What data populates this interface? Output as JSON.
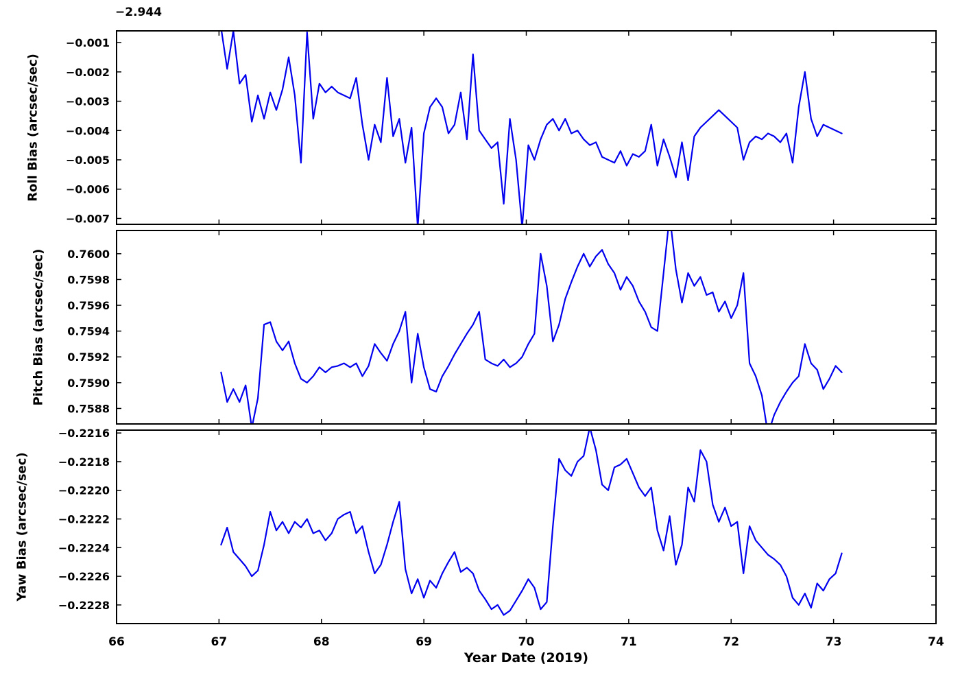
{
  "chart_data": {
    "type": "line",
    "title": "",
    "xlabel": "Year Date (2019)",
    "xlim": [
      66,
      74
    ],
    "xticks": [
      66,
      67,
      68,
      69,
      70,
      71,
      72,
      73,
      74
    ],
    "xtick_labels": [
      "66",
      "67",
      "68",
      "69",
      "70",
      "71",
      "72",
      "73",
      "74"
    ],
    "grid": false,
    "legend": null,
    "line_color": "#0000ee",
    "background": "#ffffff",
    "x": [
      67.02,
      67.08,
      67.14,
      67.2,
      67.26,
      67.32,
      67.38,
      67.44,
      67.5,
      67.56,
      67.62,
      67.68,
      67.74,
      67.8,
      67.86,
      67.92,
      67.98,
      68.04,
      68.1,
      68.16,
      68.22,
      68.28,
      68.34,
      68.4,
      68.46,
      68.52,
      68.58,
      68.64,
      68.7,
      68.76,
      68.82,
      68.88,
      68.94,
      69,
      69.06,
      69.12,
      69.18,
      69.24,
      69.3,
      69.36,
      69.42,
      69.48,
      69.54,
      69.6,
      69.66,
      69.72,
      69.78,
      69.84,
      69.9,
      69.96,
      70.02,
      70.08,
      70.14,
      70.2,
      70.26,
      70.32,
      70.38,
      70.44,
      70.5,
      70.56,
      70.62,
      70.68,
      70.74,
      70.8,
      70.86,
      70.92,
      70.98,
      71.04,
      71.1,
      71.16,
      71.22,
      71.28,
      71.34,
      71.4,
      71.46,
      71.52,
      71.58,
      71.64,
      71.7,
      71.76,
      71.82,
      71.88,
      71.94,
      72,
      72.06,
      72.12,
      72.18,
      72.24,
      72.3,
      72.36,
      72.42,
      72.48,
      72.54,
      72.6,
      72.66,
      72.72,
      72.78,
      72.84,
      72.9,
      72.96,
      73.02,
      73.08
    ],
    "subplots": [
      {
        "name": "roll",
        "ylabel": "Roll Bias (arcsec/sec)",
        "offset_text": "−2.944",
        "ylim": [
          -0.0072,
          -0.0006
        ],
        "yticks": [
          -0.007,
          -0.006,
          -0.005,
          -0.004,
          -0.003,
          -0.002,
          -0.001
        ],
        "ytick_labels": [
          "−0.007",
          "−0.006",
          "−0.005",
          "−0.004",
          "−0.003",
          "−0.002",
          "−0.001"
        ],
        "values": [
          -0.0005,
          -0.0019,
          -0.0006,
          -0.0024,
          -0.0021,
          -0.0037,
          -0.0028,
          -0.0036,
          -0.0027,
          -0.0033,
          -0.0026,
          -0.0015,
          -0.0028,
          -0.0051,
          -0.00065,
          -0.0036,
          -0.0024,
          -0.0027,
          -0.0025,
          -0.0027,
          -0.0028,
          -0.0029,
          -0.0022,
          -0.0038,
          -0.005,
          -0.0038,
          -0.0044,
          -0.0022,
          -0.0042,
          -0.0036,
          -0.0051,
          -0.0039,
          -0.0073,
          -0.0041,
          -0.0032,
          -0.0029,
          -0.0032,
          -0.0041,
          -0.0038,
          -0.0027,
          -0.0043,
          -0.0014,
          -0.004,
          -0.0043,
          -0.0046,
          -0.0044,
          -0.0065,
          -0.0036,
          -0.005,
          -0.0073,
          -0.0045,
          -0.005,
          -0.0043,
          -0.0038,
          -0.0036,
          -0.004,
          -0.0036,
          -0.0041,
          -0.004,
          -0.0043,
          -0.0045,
          -0.0044,
          -0.0049,
          -0.005,
          -0.0051,
          -0.0047,
          -0.0052,
          -0.0048,
          -0.0049,
          -0.0047,
          -0.0038,
          -0.0052,
          -0.0043,
          -0.0049,
          -0.0056,
          -0.0044,
          -0.0057,
          -0.0042,
          -0.0039,
          -0.0037,
          -0.0035,
          -0.0033,
          -0.0035,
          -0.0037,
          -0.0039,
          -0.005,
          -0.0044,
          -0.0042,
          -0.0043,
          -0.0041,
          -0.0042,
          -0.0044,
          -0.0041,
          -0.0051,
          -0.0032,
          -0.002,
          -0.0036,
          -0.0042,
          -0.0038,
          -0.0039,
          -0.004,
          -0.0041
        ]
      },
      {
        "name": "pitch",
        "ylabel": "Pitch Bias (arcsec/sec)",
        "offset_text": "",
        "ylim": [
          0.75868,
          0.76018
        ],
        "yticks": [
          0.7588,
          0.759,
          0.7592,
          0.7594,
          0.7596,
          0.7598,
          0.76
        ],
        "ytick_labels": [
          "0.7588",
          "0.7590",
          "0.7592",
          "0.7594",
          "0.7596",
          "0.7598",
          "0.7600"
        ],
        "values": [
          0.75908,
          0.75885,
          0.75895,
          0.75885,
          0.75898,
          0.75865,
          0.75888,
          0.75945,
          0.75947,
          0.75932,
          0.75925,
          0.75932,
          0.75915,
          0.75903,
          0.759,
          0.75905,
          0.75912,
          0.75908,
          0.75912,
          0.75913,
          0.75915,
          0.75912,
          0.75915,
          0.75905,
          0.75913,
          0.7593,
          0.75923,
          0.75917,
          0.7593,
          0.7594,
          0.75955,
          0.759,
          0.75938,
          0.75912,
          0.75895,
          0.75893,
          0.75905,
          0.75913,
          0.75922,
          0.7593,
          0.75938,
          0.75945,
          0.75955,
          0.75918,
          0.75915,
          0.75913,
          0.75918,
          0.75912,
          0.75915,
          0.7592,
          0.7593,
          0.75938,
          0.76,
          0.75975,
          0.75932,
          0.75945,
          0.75965,
          0.75978,
          0.7599,
          0.76,
          0.7599,
          0.75998,
          0.76003,
          0.75992,
          0.75985,
          0.75972,
          0.75982,
          0.75975,
          0.75963,
          0.75955,
          0.75943,
          0.7594,
          0.75985,
          0.7603,
          0.75988,
          0.75962,
          0.75985,
          0.75975,
          0.75982,
          0.75968,
          0.7597,
          0.75955,
          0.75963,
          0.7595,
          0.7596,
          0.75985,
          0.75915,
          0.75905,
          0.7589,
          0.7586,
          0.75875,
          0.75885,
          0.75893,
          0.759,
          0.75905,
          0.7593,
          0.75915,
          0.7591,
          0.75895,
          0.75903,
          0.75913,
          0.75908
        ]
      },
      {
        "name": "yaw",
        "ylabel": "Yaw Bias (arcsec/sec)",
        "offset_text": "",
        "ylim": [
          -0.22293,
          -0.22158
        ],
        "yticks": [
          -0.2228,
          -0.2226,
          -0.2224,
          -0.2222,
          -0.222,
          -0.2218,
          -0.2216
        ],
        "ytick_labels": [
          "−0.2228",
          "−0.2226",
          "−0.2224",
          "−0.2222",
          "−0.2220",
          "−0.2218",
          "−0.2216"
        ],
        "values": [
          -0.22238,
          -0.22226,
          -0.22243,
          -0.22248,
          -0.22253,
          -0.2226,
          -0.22256,
          -0.22238,
          -0.22215,
          -0.22228,
          -0.22222,
          -0.2223,
          -0.22222,
          -0.22226,
          -0.2222,
          -0.2223,
          -0.22228,
          -0.22235,
          -0.2223,
          -0.2222,
          -0.22217,
          -0.22215,
          -0.2223,
          -0.22225,
          -0.22243,
          -0.22258,
          -0.22252,
          -0.22238,
          -0.22222,
          -0.22208,
          -0.22255,
          -0.22272,
          -0.22262,
          -0.22275,
          -0.22263,
          -0.22268,
          -0.22258,
          -0.2225,
          -0.22243,
          -0.22257,
          -0.22254,
          -0.22258,
          -0.2227,
          -0.22276,
          -0.22283,
          -0.2228,
          -0.22287,
          -0.22284,
          -0.22277,
          -0.2227,
          -0.22262,
          -0.22268,
          -0.22283,
          -0.22278,
          -0.22225,
          -0.22178,
          -0.22186,
          -0.2219,
          -0.2218,
          -0.22176,
          -0.22156,
          -0.22172,
          -0.22196,
          -0.222,
          -0.22184,
          -0.22182,
          -0.22178,
          -0.22188,
          -0.22198,
          -0.22204,
          -0.22198,
          -0.22228,
          -0.22242,
          -0.22218,
          -0.22252,
          -0.22238,
          -0.22198,
          -0.22208,
          -0.22172,
          -0.2218,
          -0.2221,
          -0.22222,
          -0.22212,
          -0.22225,
          -0.22222,
          -0.22258,
          -0.22225,
          -0.22235,
          -0.2224,
          -0.22245,
          -0.22248,
          -0.22252,
          -0.2226,
          -0.22275,
          -0.2228,
          -0.22272,
          -0.22282,
          -0.22265,
          -0.2227,
          -0.22262,
          -0.22258,
          -0.22244
        ]
      }
    ]
  }
}
